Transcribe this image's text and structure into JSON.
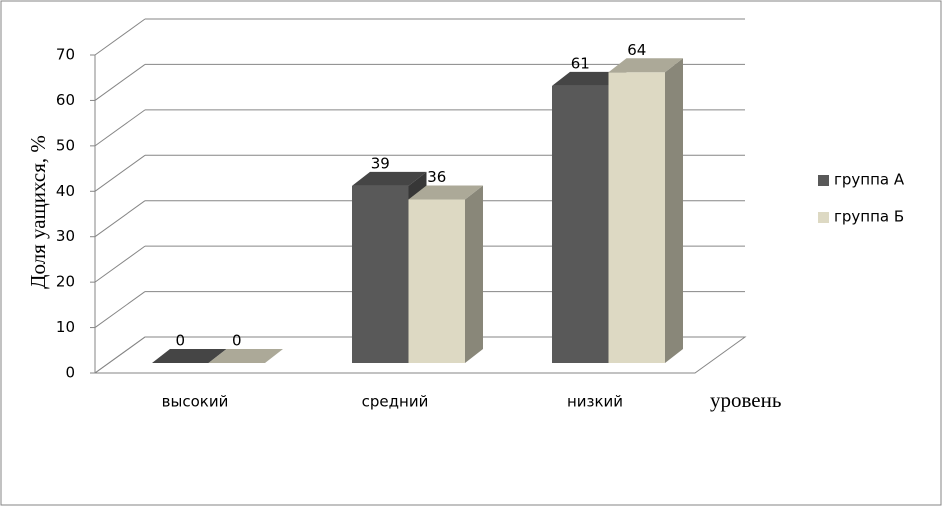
{
  "chart_data": {
    "type": "bar3d",
    "categories": [
      "высокий",
      "средний",
      "низкий"
    ],
    "series": [
      {
        "name": "группа А",
        "color": "#595959",
        "values": [
          0,
          39,
          61
        ]
      },
      {
        "name": "группа Б",
        "color": "#ddd9c3",
        "values": [
          0,
          36,
          64
        ]
      }
    ],
    "ylim": [
      0,
      70
    ],
    "yticks": [
      0,
      10,
      20,
      30,
      40,
      50,
      60,
      70
    ],
    "y_label": "Доля  уащихся, %",
    "x_label": "уровень",
    "grid": true,
    "legend": "right"
  }
}
